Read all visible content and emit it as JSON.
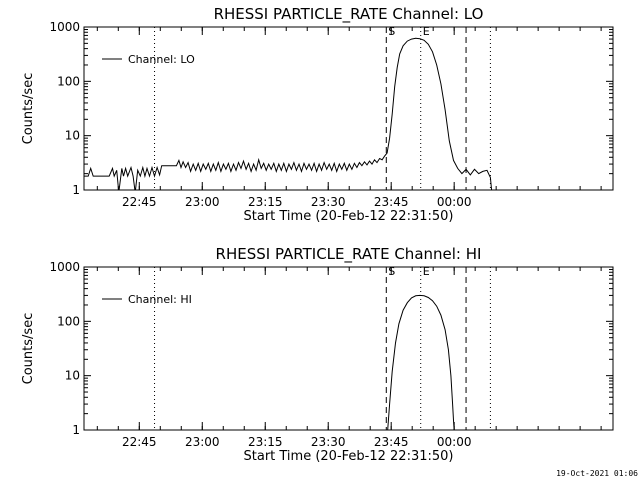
{
  "footer_timestamp": "19-Oct-2021 01:06",
  "chart_data": [
    {
      "type": "line",
      "title": "RHESSI PARTICLE_RATE Channel: LO",
      "xlabel": "Start Time (20-Feb-12 22:31:50)",
      "ylabel": "Counts/sec",
      "yscale": "log",
      "ylim": [
        1,
        1000
      ],
      "xlim_minutes": [
        0,
        126
      ],
      "x_ticks": [
        {
          "label": "22:45",
          "min": 13.17
        },
        {
          "label": "23:00",
          "min": 28.17
        },
        {
          "label": "23:15",
          "min": 43.17
        },
        {
          "label": "23:30",
          "min": 58.17
        },
        {
          "label": "23:45",
          "min": 73.17
        },
        {
          "label": "00:00",
          "min": 88.17
        }
      ],
      "y_ticks": [
        {
          "label": "1",
          "value": 1
        },
        {
          "label": "10",
          "value": 10
        },
        {
          "label": "100",
          "value": 100
        },
        {
          "label": "1000",
          "value": 1000
        }
      ],
      "legend": {
        "position": "top-left",
        "label": "Channel: LO"
      },
      "markers": [
        {
          "label": "S",
          "min": 72.0,
          "style": "dashed"
        },
        {
          "label": "E",
          "min": 80.2,
          "style": "dotted"
        },
        {
          "label": "",
          "min": 91.0,
          "style": "dashed"
        },
        {
          "label": "",
          "min": 96.8,
          "style": "dotted"
        },
        {
          "label": "",
          "min": 16.8,
          "style": "dotted"
        }
      ],
      "series": [
        {
          "name": "Channel: LO",
          "x_minutes": [
            0,
            1,
            1.6,
            2.2,
            6,
            6.8,
            7.2,
            7.8,
            8.3,
            9.0,
            9.4,
            9.9,
            10.4,
            11.2,
            11.7,
            12.2,
            12.8,
            13.4,
            14.0,
            14.5,
            15.0,
            15.6,
            16.2,
            16.8,
            17.4,
            18.0,
            18.5,
            19,
            20,
            21,
            22,
            22.6,
            23.1,
            23.6,
            24.2,
            24.8,
            25.4,
            26,
            26.6,
            27.2,
            27.8,
            28.4,
            29,
            29.6,
            30.2,
            30.8,
            31.4,
            32,
            32.6,
            33.2,
            33.8,
            34.4,
            35,
            35.6,
            36.2,
            36.8,
            37.4,
            38,
            38.6,
            39.2,
            39.8,
            40.4,
            41,
            41.6,
            42.2,
            42.8,
            43.4,
            44,
            44.6,
            45.2,
            45.8,
            46.4,
            47,
            47.6,
            48.2,
            48.8,
            49.4,
            50,
            50.6,
            51.2,
            51.8,
            52.4,
            53,
            53.6,
            54.2,
            54.8,
            55.4,
            56,
            56.6,
            57.2,
            57.8,
            58.4,
            59,
            59.6,
            60.2,
            60.8,
            61.4,
            62,
            62.6,
            63.2,
            63.8,
            64.4,
            65,
            65.6,
            66.2,
            66.8,
            67.4,
            68,
            68.6,
            69.2,
            69.8,
            70.4,
            71,
            71.6,
            72.2,
            72.8,
            73.4,
            74,
            74.6,
            75.2,
            76,
            77,
            78,
            79,
            80,
            81,
            82,
            83,
            84,
            85,
            86,
            87,
            88,
            89,
            90,
            91,
            92,
            93,
            94,
            95,
            96,
            96.8,
            97.2
          ],
          "values": [
            1.8,
            1.8,
            2.5,
            1.8,
            1.8,
            2.5,
            1.8,
            2.3,
            0.9,
            2.5,
            1.8,
            2.5,
            1.8,
            2.6,
            1.8,
            0.9,
            2.3,
            1.8,
            2.6,
            1.8,
            2.5,
            1.8,
            2.6,
            1.8,
            2.6,
            1.9,
            2.8,
            2.8,
            2.8,
            2.8,
            2.8,
            3.5,
            2.6,
            3.3,
            2.6,
            3.2,
            2.2,
            3.0,
            2.3,
            3.1,
            2.2,
            3.0,
            2.4,
            3.1,
            2.2,
            3.0,
            2.3,
            3.2,
            2.2,
            3.0,
            2.4,
            3.1,
            2.2,
            3.0,
            2.3,
            3.2,
            2.5,
            3.4,
            2.4,
            3.1,
            2.2,
            3.0,
            2.3,
            3.6,
            2.5,
            3.1,
            2.3,
            3.0,
            2.4,
            3.1,
            2.2,
            3.0,
            2.3,
            3.1,
            2.2,
            3.0,
            2.4,
            3.2,
            2.3,
            3.0,
            2.2,
            3.1,
            2.4,
            3.0,
            2.3,
            3.1,
            2.2,
            3.0,
            2.3,
            3.2,
            2.4,
            3.0,
            2.3,
            3.1,
            2.2,
            3.0,
            2.4,
            3.1,
            2.3,
            3.0,
            2.4,
            3.1,
            2.6,
            3.2,
            2.8,
            3.3,
            2.9,
            3.4,
            3.0,
            3.6,
            3.2,
            3.8,
            3.6,
            4.2,
            4.8,
            9,
            25,
            80,
            180,
            320,
            450,
            550,
            600,
            620,
            610,
            570,
            480,
            350,
            200,
            90,
            30,
            8,
            3.5,
            2.5,
            2.0,
            2.4,
            1.9,
            2.4,
            2.0,
            2.2,
            2.3,
            1.7,
            0.8
          ]
        }
      ]
    },
    {
      "type": "line",
      "title": "RHESSI PARTICLE_RATE Channel: HI",
      "xlabel": "Start Time (20-Feb-12 22:31:50)",
      "ylabel": "Counts/sec",
      "yscale": "log",
      "ylim": [
        1,
        1000
      ],
      "xlim_minutes": [
        0,
        126
      ],
      "x_ticks": [
        {
          "label": "22:45",
          "min": 13.17
        },
        {
          "label": "23:00",
          "min": 28.17
        },
        {
          "label": "23:15",
          "min": 43.17
        },
        {
          "label": "23:30",
          "min": 58.17
        },
        {
          "label": "23:45",
          "min": 73.17
        },
        {
          "label": "00:00",
          "min": 88.17
        }
      ],
      "y_ticks": [
        {
          "label": "1",
          "value": 1
        },
        {
          "label": "10",
          "value": 10
        },
        {
          "label": "100",
          "value": 100
        },
        {
          "label": "1000",
          "value": 1000
        }
      ],
      "legend": {
        "position": "top-left",
        "label": "Channel: HI"
      },
      "markers": [
        {
          "label": "S",
          "min": 72.0,
          "style": "dashed"
        },
        {
          "label": "E",
          "min": 80.2,
          "style": "dotted"
        },
        {
          "label": "",
          "min": 91.0,
          "style": "dashed"
        },
        {
          "label": "",
          "min": 96.8,
          "style": "dotted"
        },
        {
          "label": "",
          "min": 16.8,
          "style": "dotted"
        }
      ],
      "series": [
        {
          "name": "Channel: HI",
          "x_minutes": [
            72.3,
            72.8,
            73.4,
            74.2,
            75.0,
            76.0,
            77.0,
            78.0,
            79.0,
            80.0,
            81.0,
            82.0,
            83.0,
            84.0,
            85.0,
            86.0,
            86.8,
            87.4,
            87.8,
            88.0,
            88.2
          ],
          "values": [
            0.9,
            3,
            12,
            40,
            90,
            160,
            220,
            270,
            295,
            300,
            295,
            275,
            240,
            190,
            130,
            70,
            30,
            10,
            3,
            1.5,
            0.9
          ]
        }
      ]
    }
  ]
}
